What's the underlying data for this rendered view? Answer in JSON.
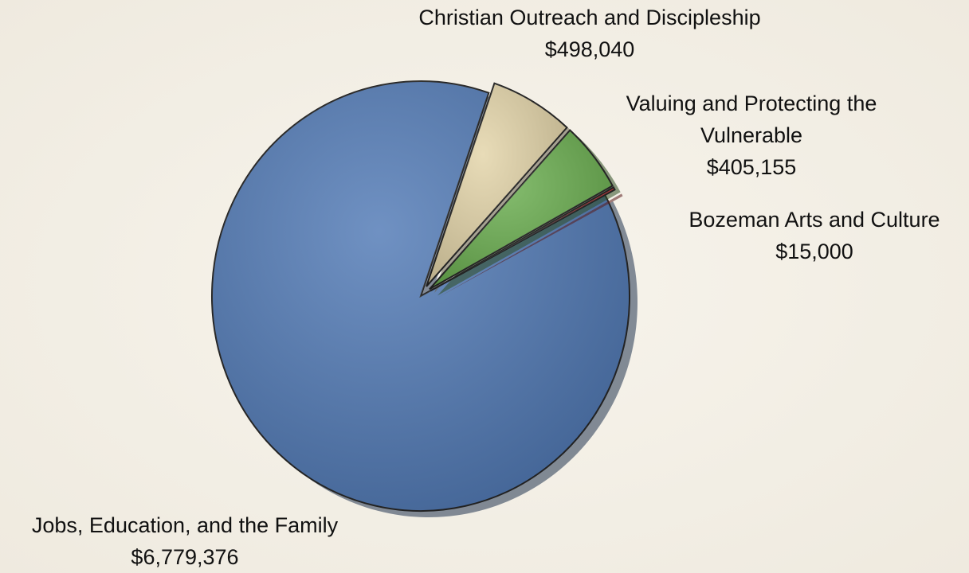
{
  "chart_data": {
    "type": "pie",
    "categories": [
      "Jobs, Education, and the Family",
      "Christian Outreach and Discipleship",
      "Valuing and Protecting the Vulnerable",
      "Bozeman Arts and Culture"
    ],
    "values": [
      6779376,
      498040,
      405155,
      15000
    ],
    "value_labels": [
      "$6,779,376",
      "$498,040",
      "$405,155",
      "$15,000"
    ],
    "colors": [
      "#5079b5",
      "#e3d4a8",
      "#6aae4f",
      "#c83c3c"
    ]
  }
}
